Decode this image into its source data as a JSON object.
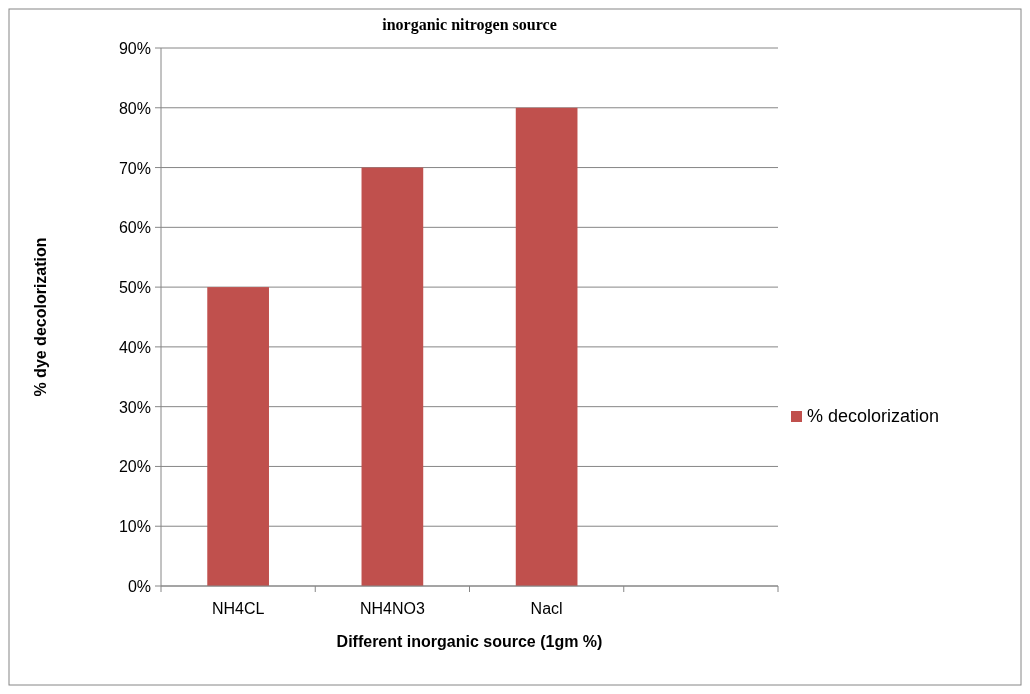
{
  "chart_data": {
    "type": "bar",
    "title": "inorganic nitrogen source",
    "xlabel": "Different inorganic source (1gm %)",
    "ylabel": "% dye decolorization",
    "categories": [
      "NH4CL",
      "NH4NO3",
      "Nacl",
      null
    ],
    "series": [
      {
        "name": "% decolorization",
        "color": "#c0504d",
        "values": [
          50,
          70,
          80,
          null
        ]
      }
    ],
    "ylim": [
      0,
      90
    ],
    "yticks": [
      {
        "value": 0,
        "label": "0%"
      },
      {
        "value": 10,
        "label": "10%"
      },
      {
        "value": 20,
        "label": "20%"
      },
      {
        "value": 30,
        "label": "30%"
      },
      {
        "value": 40,
        "label": "40%"
      },
      {
        "value": 50,
        "label": "50%"
      },
      {
        "value": 60,
        "label": "60%"
      },
      {
        "value": 70,
        "label": "70%"
      },
      {
        "value": 80,
        "label": "80%"
      },
      {
        "value": 90,
        "label": "90%"
      }
    ],
    "grid": "y",
    "legend": "right"
  }
}
